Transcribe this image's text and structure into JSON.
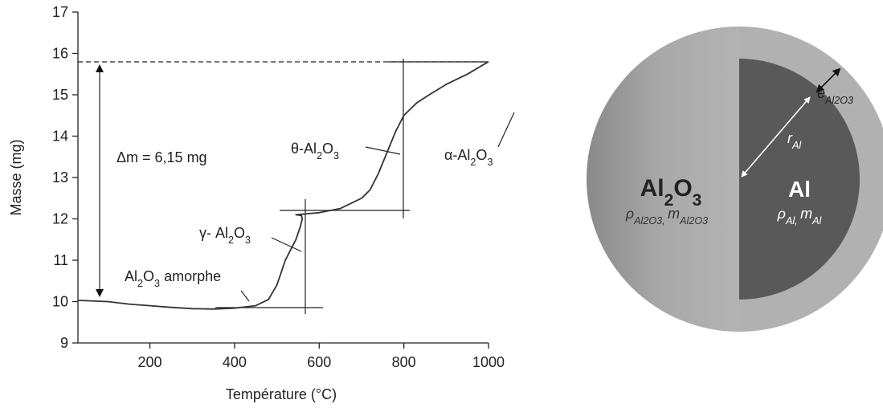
{
  "chart_data": {
    "type": "line",
    "x_label": "Température (°C)",
    "y_label": "Masse (mg)",
    "xlim": [
      30,
      1000
    ],
    "xticks": [
      200,
      400,
      600,
      800,
      1000
    ],
    "ylim": [
      9,
      17
    ],
    "yticks": [
      9,
      10,
      11,
      12,
      13,
      14,
      15,
      16,
      17
    ],
    "color": "#333333",
    "x": [
      30,
      100,
      150,
      200,
      250,
      300,
      350,
      400,
      450,
      480,
      500,
      510,
      520,
      530,
      545,
      555,
      560,
      558,
      545,
      600,
      650,
      700,
      720,
      740,
      760,
      780,
      800,
      830,
      860,
      900,
      950,
      1000
    ],
    "values": [
      10.03,
      10.0,
      9.94,
      9.9,
      9.86,
      9.83,
      9.82,
      9.84,
      9.9,
      10.05,
      10.4,
      10.7,
      11.0,
      11.2,
      11.5,
      11.8,
      12.0,
      12.08,
      12.1,
      12.15,
      12.25,
      12.5,
      12.7,
      13.1,
      13.6,
      14.1,
      14.5,
      14.8,
      15.0,
      15.25,
      15.5,
      15.8
    ],
    "annotations": {
      "delta_m": "Δm = 6,15 mg",
      "theta": [
        "θ-Al",
        "2",
        "O",
        "3"
      ],
      "alpha": [
        "α-Al",
        "2",
        "O",
        "3"
      ],
      "gamma": [
        "γ- Al",
        "2",
        "O",
        "3"
      ],
      "amorphous": [
        "Al",
        "2",
        "O",
        "3",
        " amorphe"
      ]
    }
  },
  "diagram": {
    "shell_label": [
      "Al",
      "2",
      "O",
      "3"
    ],
    "shell_props": [
      "ρ",
      "Al2O3, ",
      "m",
      "Al2O3"
    ],
    "core_label": "Al",
    "core_props": [
      "ρ",
      "Al, ",
      "m",
      "Al"
    ],
    "radius": [
      "r",
      "Al"
    ],
    "thickness": [
      "e",
      "Al2O3"
    ]
  }
}
